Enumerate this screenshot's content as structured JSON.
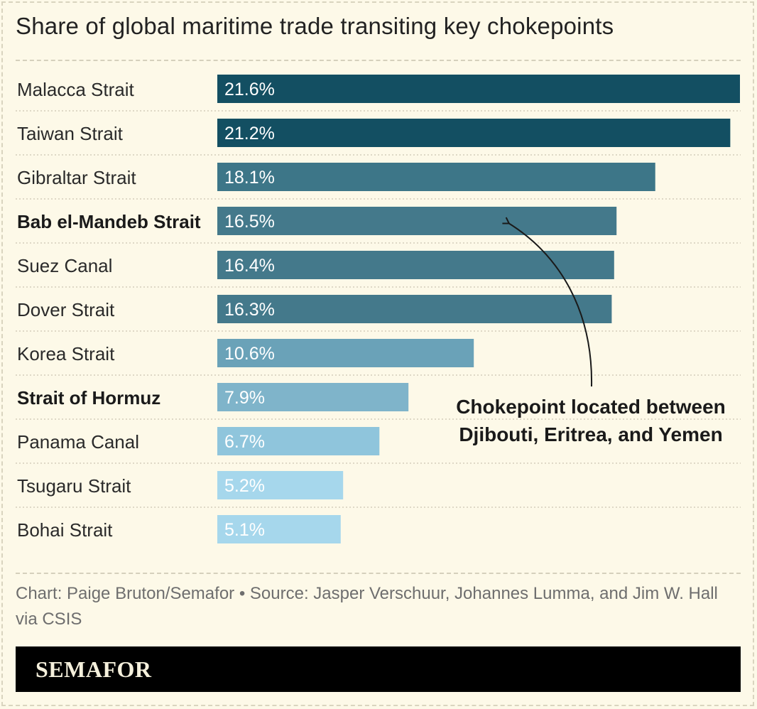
{
  "title": "Share of global maritime trade transiting key chokepoints",
  "chart_data": {
    "type": "bar",
    "orientation": "horizontal",
    "categories": [
      "Malacca Strait",
      "Taiwan Strait",
      "Gibraltar Strait",
      "Bab el-Mandeb Strait",
      "Suez Canal",
      "Dover Strait",
      "Korea Strait",
      "Strait of Hormuz",
      "Panama Canal",
      "Tsugaru Strait",
      "Bohai Strait"
    ],
    "values": [
      21.6,
      21.2,
      18.1,
      16.5,
      16.4,
      16.3,
      10.6,
      7.9,
      6.7,
      5.2,
      5.1
    ],
    "value_labels": [
      "21.6%",
      "21.2%",
      "18.1%",
      "16.5%",
      "16.4%",
      "16.3%",
      "10.6%",
      "7.9%",
      "6.7%",
      "5.2%",
      "5.1%"
    ],
    "highlighted_categories": [
      "Bab el-Mandeb Strait",
      "Strait of Hormuz"
    ],
    "bar_colors": [
      "#134f62",
      "#134f62",
      "#3d7688",
      "#44798b",
      "#44798b",
      "#44798b",
      "#6aa2b8",
      "#7fb4ca",
      "#8fc5dc",
      "#a6d7ec",
      "#a6d7ec"
    ],
    "xlim": [
      0,
      21.6
    ],
    "grid": false,
    "annotation": {
      "text_lines": [
        "Chokepoint located between",
        "Djibouti, Eritrea, and Yemen"
      ],
      "target_category": "Bab el-Mandeb Strait"
    }
  },
  "footer": {
    "credit": "Chart: Paige Bruton/Semafor • Source: Jasper Verschuur, Johannes Lumma, and Jim W. Hall via CSIS"
  },
  "brand": {
    "name": "SEMAFOR"
  },
  "colors": {
    "background": "#fdf9e8",
    "brand_bar": "#000000"
  }
}
